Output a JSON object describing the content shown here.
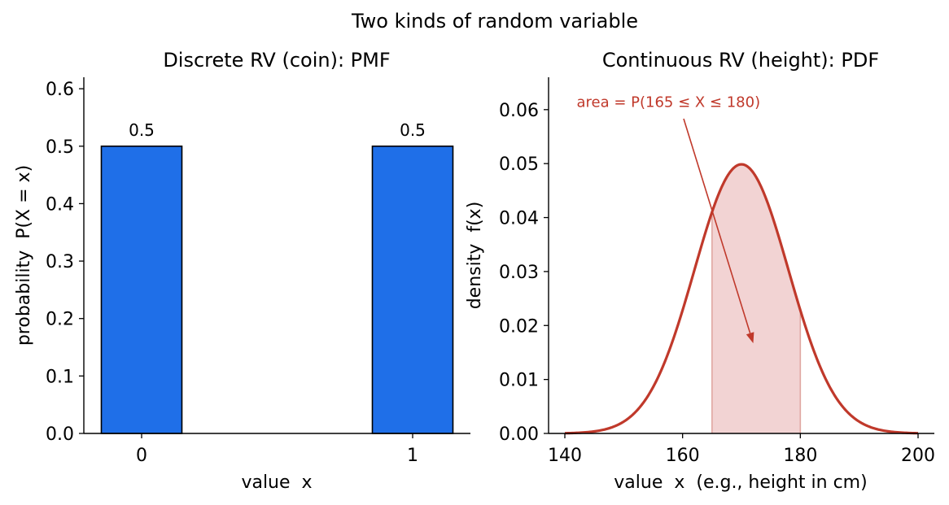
{
  "suptitle": "Two kinds of random variable",
  "chart_data": [
    {
      "type": "bar",
      "title": "Discrete RV (coin): PMF",
      "xlabel": "value  x",
      "ylabel": "probability  P(X = x)",
      "categories": [
        "0",
        "1"
      ],
      "values": [
        0.5,
        0.5
      ],
      "data_labels": [
        "0.5",
        "0.5"
      ],
      "ylim": [
        0,
        0.62
      ],
      "yticks": [
        0.0,
        0.1,
        0.2,
        0.3,
        0.4,
        0.5,
        0.6
      ],
      "ytick_labels": [
        "0.0",
        "0.1",
        "0.2",
        "0.3",
        "0.4",
        "0.5",
        "0.6"
      ],
      "grid": false,
      "colors": {
        "bar": "#1f6fe8",
        "edge": "#000000"
      }
    },
    {
      "type": "area",
      "title": "Continuous RV (height): PDF",
      "xlabel": "value  x  (e.g., height in cm)",
      "ylabel": "density  f(x)",
      "distribution": {
        "family": "normal",
        "mean": 170,
        "sd": 8
      },
      "x_range": [
        140,
        200
      ],
      "xlim": [
        138,
        203
      ],
      "ylim": [
        0,
        0.066
      ],
      "xticks": [
        140,
        160,
        180,
        200
      ],
      "xtick_labels": [
        "140",
        "160",
        "180",
        "200"
      ],
      "yticks": [
        0.0,
        0.01,
        0.02,
        0.03,
        0.04,
        0.05,
        0.06
      ],
      "ytick_labels": [
        "0.00",
        "0.01",
        "0.02",
        "0.03",
        "0.04",
        "0.05",
        "0.06"
      ],
      "shaded_interval": [
        165,
        180
      ],
      "annotation": {
        "text": "area = P(165 ≤ X ≤ 180)",
        "text_at": [
          142,
          0.0605
        ],
        "arrow_to": [
          172,
          0.0167
        ]
      },
      "grid": false,
      "colors": {
        "line": "#c0392b",
        "fill": "#f2d3d3",
        "annotation": "#c0392b"
      }
    }
  ]
}
